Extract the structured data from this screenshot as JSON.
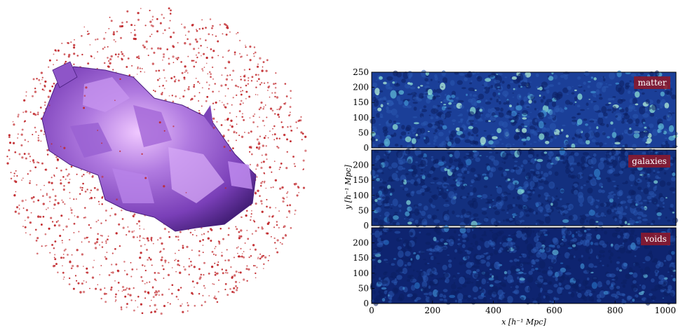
{
  "figure": {
    "left_panel": {
      "description_icon": "void-surface-3d"
    },
    "right_panel": {
      "panels": [
        {
          "label": "matter"
        },
        {
          "label": "galaxies"
        },
        {
          "label": "voids"
        }
      ],
      "x_axis_label": "x  [h⁻¹ Mpc]",
      "y_axis_label": "y  [h⁻¹ Mpc]",
      "x_ticks": [
        "0",
        "200",
        "400",
        "600",
        "800",
        "1000"
      ],
      "y_ticks_top": [
        "0",
        "50",
        "100",
        "150",
        "200",
        "250"
      ],
      "y_ticks_mid": [
        "0",
        "50",
        "100",
        "150",
        "200"
      ],
      "y_ticks_bot": [
        "0",
        "50",
        "100",
        "150",
        "200"
      ]
    }
  },
  "colors": {
    "void_surface": "#9b59d0",
    "points": "#c0262a",
    "label_bg": "#8b1a2e",
    "map_dark": "#0b1a5c",
    "map_mid": "#1e4aa0",
    "map_bright": "#7fd8d2"
  },
  "chart_data": [
    {
      "type": "heatmap",
      "title": "matter",
      "xlabel": "x  [h⁻¹ Mpc]",
      "ylabel": "",
      "xlim": [
        0,
        1000
      ],
      "ylim": [
        0,
        250
      ]
    },
    {
      "type": "heatmap",
      "title": "galaxies",
      "xlabel": "x  [h⁻¹ Mpc]",
      "ylabel": "y  [h⁻¹ Mpc]",
      "xlim": [
        0,
        1000
      ],
      "ylim": [
        0,
        250
      ]
    },
    {
      "type": "heatmap",
      "title": "voids",
      "xlabel": "x  [h⁻¹ Mpc]",
      "ylabel": "",
      "xlim": [
        0,
        1000
      ],
      "ylim": [
        0,
        250
      ]
    }
  ]
}
